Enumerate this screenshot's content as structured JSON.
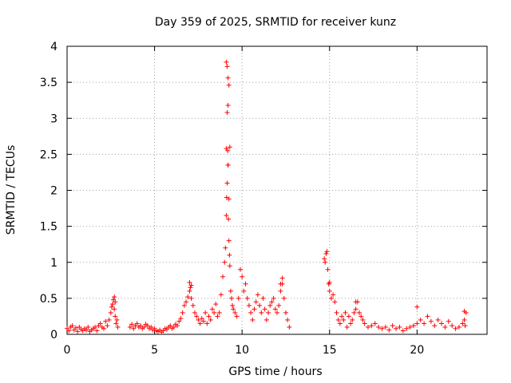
{
  "chart_data": {
    "type": "scatter",
    "title": "Day 359 of 2025, SRMTID for receiver kunz",
    "xlabel": "GPS time / hours",
    "ylabel": "SRMTID / TECUs",
    "xlim": [
      0,
      24
    ],
    "ylim": [
      0,
      4
    ],
    "xticks": [
      0,
      5,
      10,
      15,
      20
    ],
    "xtick_labels": [
      "0",
      "5",
      "10",
      "15",
      "20"
    ],
    "yticks": [
      0,
      0.5,
      1,
      1.5,
      2,
      2.5,
      3,
      3.5,
      4
    ],
    "ytick_labels": [
      "0",
      "0.5",
      "1",
      "1.5",
      "2",
      "2.5",
      "3",
      "3.5",
      "4"
    ],
    "grid": true,
    "marker": "plus",
    "color": "#ff0000",
    "series": [
      {
        "name": "SRMTID",
        "x": [
          0.0,
          0.1,
          0.2,
          0.3,
          0.4,
          0.5,
          0.6,
          0.7,
          0.8,
          0.9,
          1.0,
          1.1,
          1.2,
          1.3,
          1.4,
          1.5,
          1.6,
          1.7,
          1.8,
          1.9,
          2.0,
          2.1,
          2.2,
          2.3,
          2.4,
          2.5,
          2.55,
          2.6,
          2.65,
          2.7,
          2.75,
          2.8,
          2.85,
          2.9,
          3.6,
          3.7,
          3.8,
          3.9,
          4.0,
          4.1,
          4.2,
          4.3,
          4.4,
          4.5,
          4.6,
          4.7,
          4.8,
          4.9,
          5.0,
          5.1,
          5.2,
          5.3,
          5.4,
          5.5,
          5.6,
          5.7,
          5.8,
          5.9,
          6.0,
          6.1,
          6.2,
          6.3,
          6.4,
          6.5,
          6.6,
          6.7,
          6.8,
          6.9,
          7.0,
          7.05,
          7.1,
          7.2,
          7.3,
          7.4,
          7.5,
          7.6,
          7.7,
          7.8,
          7.9,
          8.0,
          8.1,
          8.2,
          8.3,
          8.4,
          8.5,
          8.6,
          8.7,
          8.8,
          8.9,
          9.0,
          9.05,
          9.1,
          9.12,
          9.15,
          9.18,
          9.2,
          9.22,
          9.25,
          9.28,
          9.3,
          9.35,
          9.4,
          9.45,
          9.5,
          9.6,
          9.7,
          9.8,
          9.9,
          10.0,
          10.1,
          10.2,
          10.3,
          10.4,
          10.5,
          10.6,
          10.7,
          10.8,
          10.9,
          11.0,
          11.1,
          11.2,
          11.3,
          11.4,
          11.5,
          11.6,
          11.7,
          11.8,
          11.9,
          12.0,
          12.1,
          12.2,
          12.3,
          12.4,
          12.5,
          12.6,
          12.7,
          14.7,
          14.75,
          14.8,
          14.85,
          14.9,
          14.95,
          15.0,
          15.1,
          15.2,
          15.3,
          15.4,
          15.5,
          15.6,
          15.7,
          15.8,
          15.9,
          16.0,
          16.1,
          16.2,
          16.3,
          16.4,
          16.5,
          16.6,
          16.7,
          16.8,
          16.9,
          17.0,
          17.2,
          17.4,
          17.6,
          17.8,
          18.0,
          18.2,
          18.4,
          18.6,
          18.8,
          19.0,
          19.2,
          19.4,
          19.6,
          19.8,
          20.0,
          20.2,
          20.4,
          20.6,
          20.8,
          21.0,
          21.2,
          21.4,
          21.6,
          21.8,
          22.0,
          22.2,
          22.4,
          22.6,
          22.7,
          22.75,
          22.8,
          9.1,
          9.15,
          9.2,
          9.25,
          9.3,
          9.2,
          9.15,
          9.1,
          9.25,
          9.2,
          2.7,
          2.75,
          7.0,
          7.1,
          12.3,
          12.2,
          16.5,
          20.0,
          22.7,
          15.0
        ],
        "y": [
          0.08,
          0.05,
          0.1,
          0.12,
          0.06,
          0.09,
          0.04,
          0.1,
          0.07,
          0.05,
          0.08,
          0.06,
          0.1,
          0.04,
          0.06,
          0.08,
          0.1,
          0.05,
          0.12,
          0.15,
          0.1,
          0.08,
          0.18,
          0.12,
          0.2,
          0.3,
          0.38,
          0.42,
          0.48,
          0.35,
          0.25,
          0.15,
          0.2,
          0.1,
          0.1,
          0.14,
          0.08,
          0.12,
          0.15,
          0.1,
          0.12,
          0.08,
          0.1,
          0.14,
          0.12,
          0.08,
          0.1,
          0.06,
          0.08,
          0.05,
          0.04,
          0.06,
          0.03,
          0.05,
          0.08,
          0.07,
          0.1,
          0.12,
          0.08,
          0.1,
          0.14,
          0.12,
          0.18,
          0.22,
          0.3,
          0.4,
          0.45,
          0.52,
          0.6,
          0.65,
          0.5,
          0.4,
          0.3,
          0.25,
          0.2,
          0.15,
          0.22,
          0.18,
          0.3,
          0.15,
          0.25,
          0.2,
          0.35,
          0.3,
          0.42,
          0.25,
          0.3,
          0.55,
          0.8,
          1.0,
          1.2,
          1.65,
          1.9,
          2.1,
          2.55,
          2.35,
          1.6,
          1.3,
          1.1,
          0.95,
          0.6,
          0.5,
          0.4,
          0.35,
          0.3,
          0.25,
          0.5,
          0.9,
          0.8,
          0.6,
          0.7,
          0.5,
          0.4,
          0.3,
          0.2,
          0.35,
          0.45,
          0.55,
          0.4,
          0.3,
          0.5,
          0.35,
          0.2,
          0.3,
          0.4,
          0.45,
          0.5,
          0.35,
          0.3,
          0.4,
          0.6,
          0.7,
          0.5,
          0.3,
          0.2,
          0.1,
          1.05,
          1.0,
          1.12,
          1.15,
          0.9,
          0.7,
          0.6,
          0.5,
          0.55,
          0.45,
          0.3,
          0.2,
          0.15,
          0.25,
          0.2,
          0.3,
          0.1,
          0.25,
          0.15,
          0.2,
          0.3,
          0.35,
          0.45,
          0.3,
          0.25,
          0.2,
          0.15,
          0.1,
          0.12,
          0.15,
          0.1,
          0.08,
          0.1,
          0.06,
          0.12,
          0.08,
          0.1,
          0.05,
          0.08,
          0.1,
          0.12,
          0.15,
          0.2,
          0.15,
          0.25,
          0.18,
          0.12,
          0.2,
          0.15,
          0.1,
          0.18,
          0.12,
          0.08,
          0.1,
          0.15,
          0.2,
          0.12,
          0.3,
          3.78,
          3.72,
          3.56,
          3.46,
          2.6,
          3.18,
          3.08,
          2.58,
          1.88,
          2.35,
          0.52,
          0.45,
          0.72,
          0.68,
          0.78,
          0.7,
          0.45,
          0.38,
          0.32,
          0.72
        ]
      }
    ]
  }
}
